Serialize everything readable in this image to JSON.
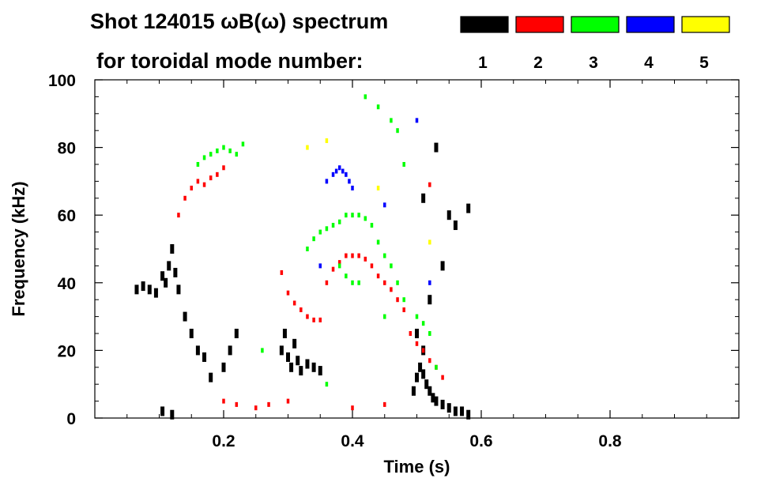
{
  "header": {
    "title": "Shot 124015 ωB(ω) spectrum",
    "subtitle": "for toroidal mode number:"
  },
  "legend": [
    {
      "label": "1",
      "color": "#000000"
    },
    {
      "label": "2",
      "color": "#ff0000"
    },
    {
      "label": "3",
      "color": "#00ff00"
    },
    {
      "label": "4",
      "color": "#0000ff"
    },
    {
      "label": "5",
      "color": "#ffff00"
    }
  ],
  "chart_data": {
    "type": "scatter",
    "title": "Shot 124015 ωB(ω) spectrum",
    "subtitle": "for toroidal mode number:",
    "xlabel": "Time (s)",
    "ylabel": "Frequency (kHz)",
    "xlim": [
      0.0,
      1.0
    ],
    "ylim": [
      0,
      100
    ],
    "x_ticks": [
      0.2,
      0.4,
      0.6,
      0.8
    ],
    "x_tick_labels": [
      "0.2",
      "0.4",
      "0.6",
      "0.8"
    ],
    "y_ticks": [
      0,
      20,
      40,
      60,
      80,
      100
    ],
    "y_tick_labels": [
      "0",
      "20",
      "40",
      "60",
      "80",
      "100"
    ],
    "legend_location": "top-right",
    "grid": false,
    "series": [
      {
        "name": "1",
        "color": "#000000",
        "x": [
          0.065,
          0.075,
          0.085,
          0.095,
          0.105,
          0.11,
          0.115,
          0.12,
          0.125,
          0.13,
          0.14,
          0.15,
          0.16,
          0.17,
          0.18,
          0.105,
          0.12,
          0.2,
          0.21,
          0.22,
          0.29,
          0.295,
          0.3,
          0.305,
          0.31,
          0.315,
          0.32,
          0.33,
          0.34,
          0.35,
          0.495,
          0.5,
          0.505,
          0.51,
          0.515,
          0.52,
          0.525,
          0.53,
          0.54,
          0.55,
          0.56,
          0.57,
          0.58,
          0.5,
          0.51,
          0.52,
          0.54,
          0.56,
          0.51,
          0.53,
          0.55,
          0.58
        ],
        "y": [
          38,
          39,
          38,
          37,
          42,
          40,
          45,
          50,
          43,
          38,
          30,
          25,
          20,
          18,
          12,
          2,
          1,
          15,
          20,
          25,
          20,
          25,
          18,
          15,
          22,
          17,
          14,
          16,
          15,
          14,
          8,
          12,
          15,
          13,
          10,
          8,
          6,
          5,
          4,
          3,
          2,
          2,
          1,
          25,
          20,
          35,
          45,
          57,
          65,
          80,
          60,
          62
        ]
      },
      {
        "name": "2",
        "color": "#ff0000",
        "x": [
          0.13,
          0.14,
          0.15,
          0.16,
          0.17,
          0.18,
          0.19,
          0.2,
          0.29,
          0.3,
          0.31,
          0.32,
          0.33,
          0.34,
          0.35,
          0.36,
          0.37,
          0.38,
          0.39,
          0.4,
          0.41,
          0.42,
          0.43,
          0.44,
          0.45,
          0.46,
          0.47,
          0.48,
          0.49,
          0.5,
          0.51,
          0.52,
          0.53,
          0.54,
          0.2,
          0.22,
          0.25,
          0.27,
          0.3,
          0.4,
          0.45,
          0.52
        ],
        "y": [
          60,
          65,
          68,
          70,
          69,
          71,
          72,
          74,
          43,
          37,
          34,
          32,
          30,
          29,
          29,
          40,
          44,
          46,
          48,
          48,
          48,
          47,
          45,
          42,
          40,
          38,
          35,
          32,
          25,
          22,
          20,
          17,
          15,
          12,
          5,
          4,
          3,
          4,
          5,
          3,
          4,
          69
        ]
      },
      {
        "name": "3",
        "color": "#00ff00",
        "x": [
          0.16,
          0.17,
          0.18,
          0.19,
          0.2,
          0.21,
          0.22,
          0.23,
          0.33,
          0.34,
          0.35,
          0.36,
          0.37,
          0.38,
          0.39,
          0.4,
          0.41,
          0.42,
          0.43,
          0.44,
          0.45,
          0.46,
          0.47,
          0.48,
          0.5,
          0.51,
          0.52,
          0.53,
          0.42,
          0.44,
          0.46,
          0.47,
          0.38,
          0.39,
          0.4,
          0.41,
          0.45,
          0.36,
          0.26,
          0.48
        ],
        "y": [
          75,
          77,
          78,
          79,
          80,
          79,
          78,
          81,
          50,
          53,
          55,
          56,
          57,
          58,
          60,
          60,
          60,
          59,
          57,
          52,
          48,
          45,
          40,
          35,
          30,
          28,
          25,
          15,
          95,
          92,
          88,
          85,
          45,
          42,
          40,
          40,
          30,
          10,
          20,
          75
        ]
      },
      {
        "name": "4",
        "color": "#0000ff",
        "x": [
          0.37,
          0.375,
          0.38,
          0.385,
          0.39,
          0.395,
          0.4,
          0.35,
          0.36,
          0.45,
          0.5,
          0.52
        ],
        "y": [
          72,
          73,
          74,
          73,
          72,
          70,
          68,
          45,
          70,
          63,
          88,
          40
        ]
      },
      {
        "name": "5",
        "color": "#ffff00",
        "x": [
          0.33,
          0.36,
          0.44,
          0.52
        ],
        "y": [
          80,
          82,
          68,
          52
        ]
      }
    ]
  }
}
